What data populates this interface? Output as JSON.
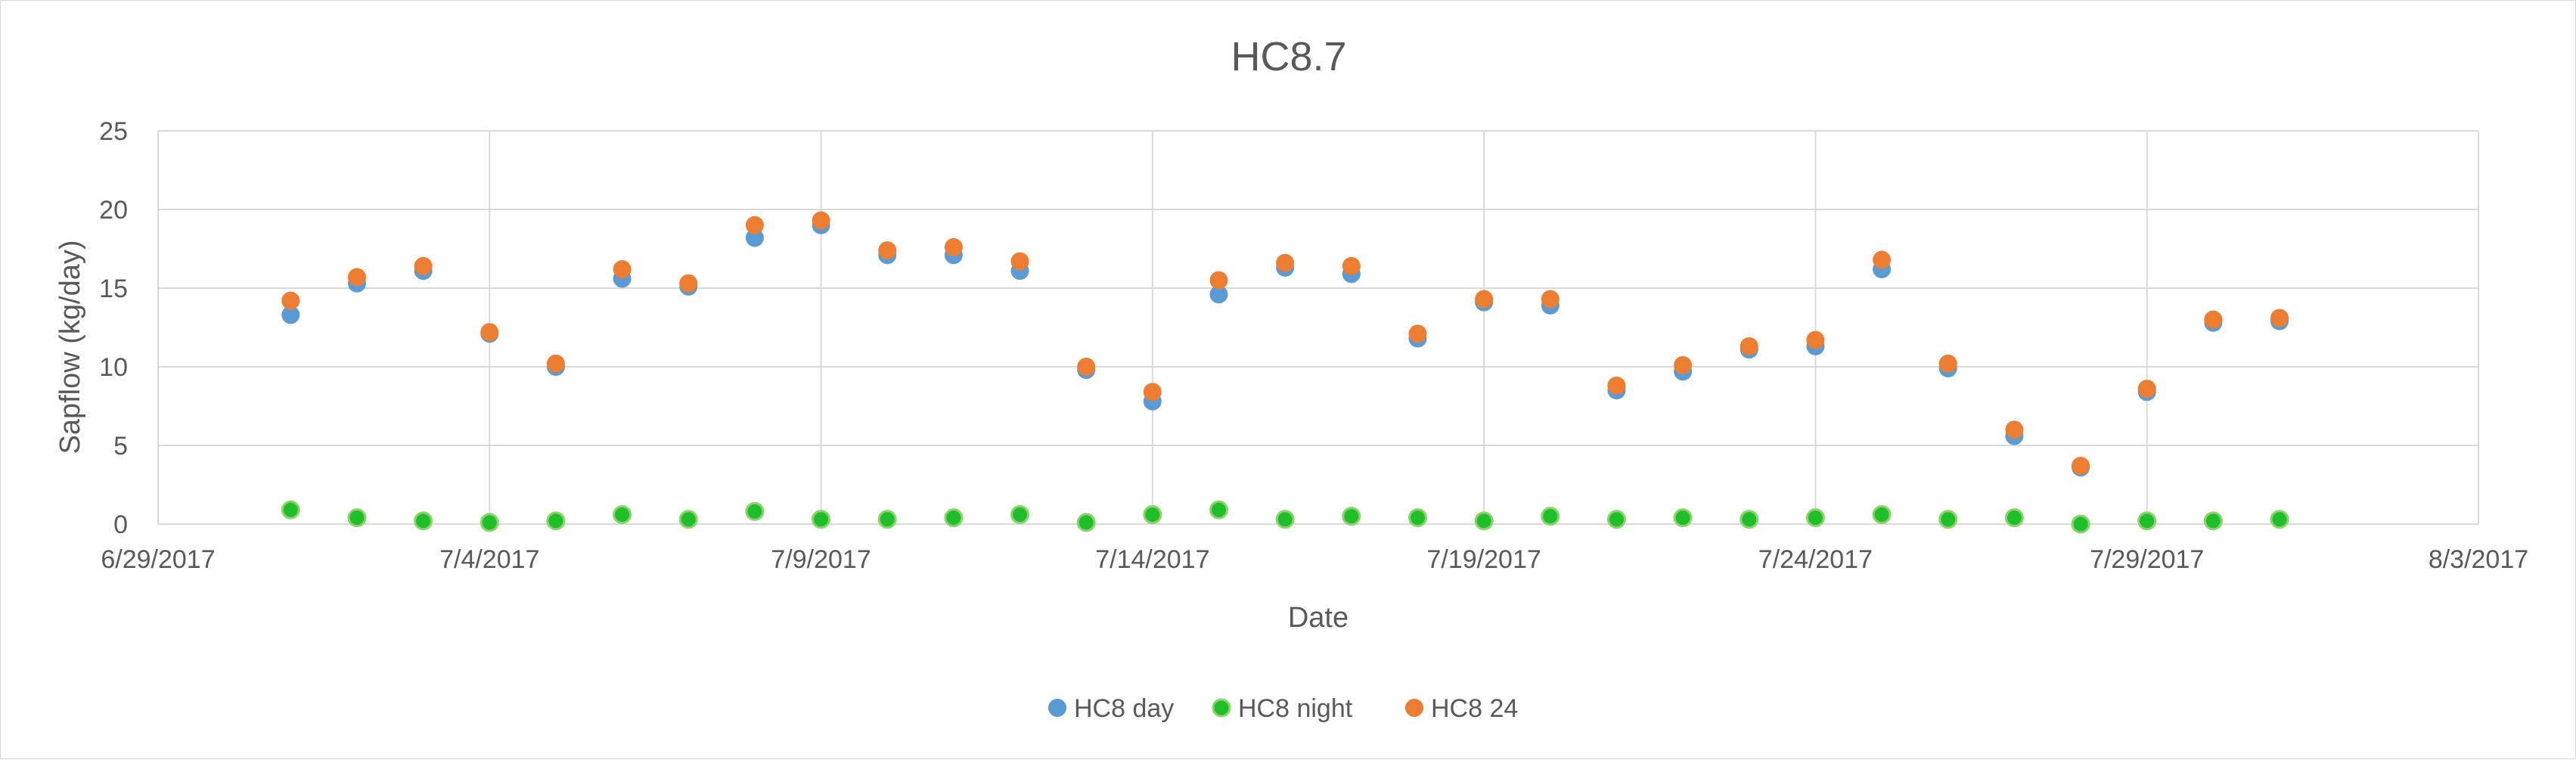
{
  "chart_data": {
    "type": "scatter",
    "title": "HC8.7",
    "xlabel": "Date",
    "ylabel": "Sapflow (kg/day)",
    "x_axis_type": "date",
    "xlim": [
      "2017-06-29",
      "2017-08-03"
    ],
    "x_ticks": [
      "2017-06-29",
      "2017-07-04",
      "2017-07-09",
      "2017-07-14",
      "2017-07-19",
      "2017-07-24",
      "2017-07-29",
      "2017-08-03"
    ],
    "x_tick_labels": [
      "6/29/2017",
      "7/4/2017",
      "7/9/2017",
      "7/14/2017",
      "7/19/2017",
      "7/24/2017",
      "7/29/2017",
      "8/3/2017"
    ],
    "ylim": [
      0,
      25
    ],
    "y_ticks": [
      0,
      5,
      10,
      15,
      20,
      25
    ],
    "grid": true,
    "legend_position": "bottom",
    "series": [
      {
        "name": "HC8 day",
        "color": "#5b9bd5",
        "x": [
          "2017-07-01",
          "2017-07-02",
          "2017-07-03",
          "2017-07-04",
          "2017-07-05",
          "2017-07-06",
          "2017-07-07",
          "2017-07-08",
          "2017-07-09",
          "2017-07-10",
          "2017-07-11",
          "2017-07-12",
          "2017-07-13",
          "2017-07-14",
          "2017-07-15",
          "2017-07-16",
          "2017-07-17",
          "2017-07-18",
          "2017-07-19",
          "2017-07-20",
          "2017-07-21",
          "2017-07-22",
          "2017-07-23",
          "2017-07-24",
          "2017-07-25",
          "2017-07-26",
          "2017-07-27",
          "2017-07-28",
          "2017-07-29",
          "2017-07-30",
          "2017-07-31"
        ],
        "y": [
          13.3,
          15.3,
          16.1,
          12.1,
          10.0,
          15.6,
          15.1,
          18.2,
          19.0,
          17.1,
          17.1,
          16.1,
          9.8,
          7.8,
          14.6,
          16.3,
          15.9,
          11.8,
          14.1,
          13.9,
          8.5,
          9.7,
          11.1,
          11.3,
          16.2,
          9.9,
          5.6,
          3.6,
          8.4,
          12.8,
          12.9
        ]
      },
      {
        "name": "HC8 night",
        "color": "#1fbf2a",
        "x": [
          "2017-07-01",
          "2017-07-02",
          "2017-07-03",
          "2017-07-04",
          "2017-07-05",
          "2017-07-06",
          "2017-07-07",
          "2017-07-08",
          "2017-07-09",
          "2017-07-10",
          "2017-07-11",
          "2017-07-12",
          "2017-07-13",
          "2017-07-14",
          "2017-07-15",
          "2017-07-16",
          "2017-07-17",
          "2017-07-18",
          "2017-07-19",
          "2017-07-20",
          "2017-07-21",
          "2017-07-22",
          "2017-07-23",
          "2017-07-24",
          "2017-07-25",
          "2017-07-26",
          "2017-07-27",
          "2017-07-28",
          "2017-07-29",
          "2017-07-30",
          "2017-07-31"
        ],
        "y": [
          0.9,
          0.4,
          0.2,
          0.1,
          0.2,
          0.6,
          0.3,
          0.8,
          0.3,
          0.3,
          0.4,
          0.6,
          0.1,
          0.6,
          0.9,
          0.3,
          0.5,
          0.4,
          0.2,
          0.5,
          0.3,
          0.4,
          0.3,
          0.4,
          0.6,
          0.3,
          0.4,
          0.0,
          0.2,
          0.2,
          0.3
        ]
      },
      {
        "name": "HC8 24",
        "color": "#ed7d31",
        "x": [
          "2017-07-01",
          "2017-07-02",
          "2017-07-03",
          "2017-07-04",
          "2017-07-05",
          "2017-07-06",
          "2017-07-07",
          "2017-07-08",
          "2017-07-09",
          "2017-07-10",
          "2017-07-11",
          "2017-07-12",
          "2017-07-13",
          "2017-07-14",
          "2017-07-15",
          "2017-07-16",
          "2017-07-17",
          "2017-07-18",
          "2017-07-19",
          "2017-07-20",
          "2017-07-21",
          "2017-07-22",
          "2017-07-23",
          "2017-07-24",
          "2017-07-25",
          "2017-07-26",
          "2017-07-27",
          "2017-07-28",
          "2017-07-29",
          "2017-07-30",
          "2017-07-31"
        ],
        "y": [
          14.2,
          15.7,
          16.4,
          12.2,
          10.2,
          16.2,
          15.3,
          19.0,
          19.3,
          17.4,
          17.6,
          16.7,
          10.0,
          8.4,
          15.5,
          16.6,
          16.4,
          12.1,
          14.3,
          14.3,
          8.8,
          10.1,
          11.3,
          11.7,
          16.8,
          10.2,
          6.0,
          3.7,
          8.6,
          13.0,
          13.1
        ]
      }
    ]
  }
}
